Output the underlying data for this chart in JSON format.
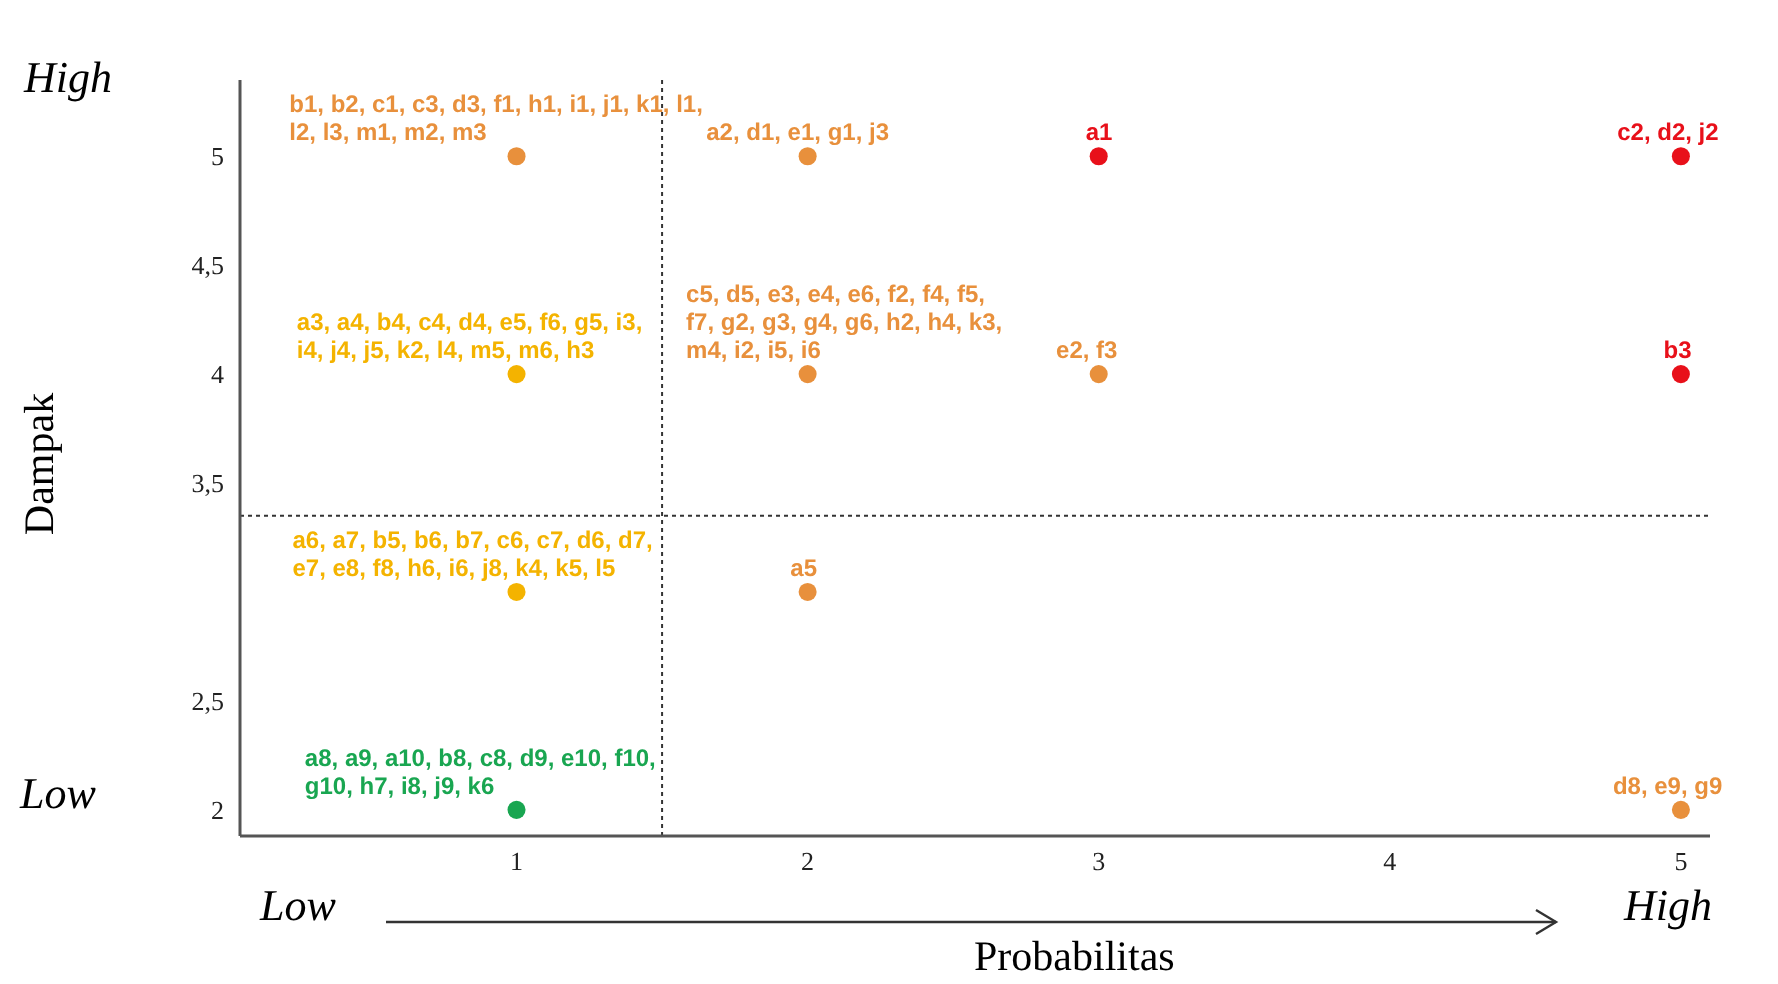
{
  "chart_data": {
    "type": "scatter",
    "xlabel": "Probabilitas",
    "ylabel": "Dampak",
    "x": [
      1,
      1,
      1,
      1,
      2,
      2,
      2,
      3,
      3,
      5,
      5,
      5
    ],
    "values": [
      5,
      4,
      3,
      2,
      5,
      4,
      3,
      5,
      4,
      5,
      4,
      2
    ],
    "colors": [
      "#e8903c",
      "#f4b300",
      "#f4b300",
      "#19a651",
      "#e8903c",
      "#e8903c",
      "#e8903c",
      "#e8101a",
      "#e8903c",
      "#e8101a",
      "#e8101a",
      "#e8903c"
    ],
    "value_labels": [
      "b1, b2, c1, c3, d3, f1, h1, i1, j1, k1, l1, l2, l3, m1, m2, m3",
      "a3, a4, b4, c4, d4, e5, f6, g5, i3, i4, j4, j5, k2, l4, m5, m6, h3",
      "a6, a7, b5, b6, b7, c6, c7, d6, d7, e7, e8, f8, h6, i6, j8, k4, k5, l5",
      "a8, a9, a10, b8, c8, d9, e10, f10, g10, h7, i8, j9, k6",
      "a2, d1, e1, g1, j3",
      "c5, d5, e3, e4, e6, f2, f4, f5, f7, g2, g3, g4, g6, h2, h4, k3, m4, i2, i5, i6",
      "a5",
      "a1",
      "e2, f3",
      "c2, d2, j2",
      "b3",
      "d8, e9, g9"
    ],
    "xlim": [
      0.05,
      5.1
    ],
    "xticks": [
      1,
      2,
      3,
      4,
      5
    ],
    "ylim": [
      1.88,
      5.35
    ],
    "yticks": [
      2,
      {
        "value": 2.5,
        "label": "2,5"
      },
      {
        "value": 3.5,
        "label": "3,5"
      },
      4,
      {
        "value": 4.5,
        "label": "4,5"
      },
      5
    ],
    "ref_lines": [
      {
        "axis": "x",
        "value": 1.5,
        "line_style": "dotted"
      },
      {
        "axis": "y",
        "value": 3.35,
        "line_style": "dotted"
      }
    ],
    "annotations": [
      "High",
      "Low",
      "Low",
      "High"
    ]
  }
}
